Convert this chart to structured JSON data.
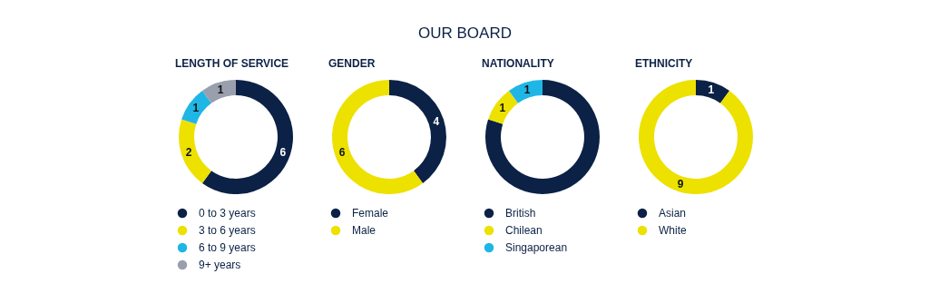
{
  "chart_data": [
    {
      "type": "donut",
      "title": "LENGTH OF SERVICE",
      "annotations": [
        "OUR BOARD"
      ],
      "categories": [
        "0 to 3 years",
        "3 to 6 years",
        "6 to 9 years",
        "9+ years"
      ],
      "values": [
        6,
        2,
        1,
        1
      ],
      "colors": [
        "#0b2145",
        "#ede100",
        "#1fb6e6",
        "#9a9fae"
      ],
      "data_labels": true,
      "legend": "bottom"
    },
    {
      "type": "donut",
      "title": "GENDER",
      "categories": [
        "Female",
        "Male"
      ],
      "values": [
        4,
        6
      ],
      "colors": [
        "#0b2145",
        "#ede100"
      ],
      "data_labels": true,
      "legend": "bottom"
    },
    {
      "type": "donut",
      "title": "NATIONALITY",
      "categories": [
        "British",
        "Chilean",
        "Singaporean"
      ],
      "values": [
        8,
        1,
        1
      ],
      "colors": [
        "#0b2145",
        "#ede100",
        "#1fb6e6"
      ],
      "value_labels": [
        null,
        "1",
        "1"
      ],
      "legend": "bottom"
    },
    {
      "type": "donut",
      "title": "ETHNICITY",
      "categories": [
        "Asian",
        "White"
      ],
      "values": [
        1,
        9
      ],
      "colors": [
        "#0b2145",
        "#ede100"
      ],
      "data_labels": true,
      "legend": "bottom"
    }
  ]
}
